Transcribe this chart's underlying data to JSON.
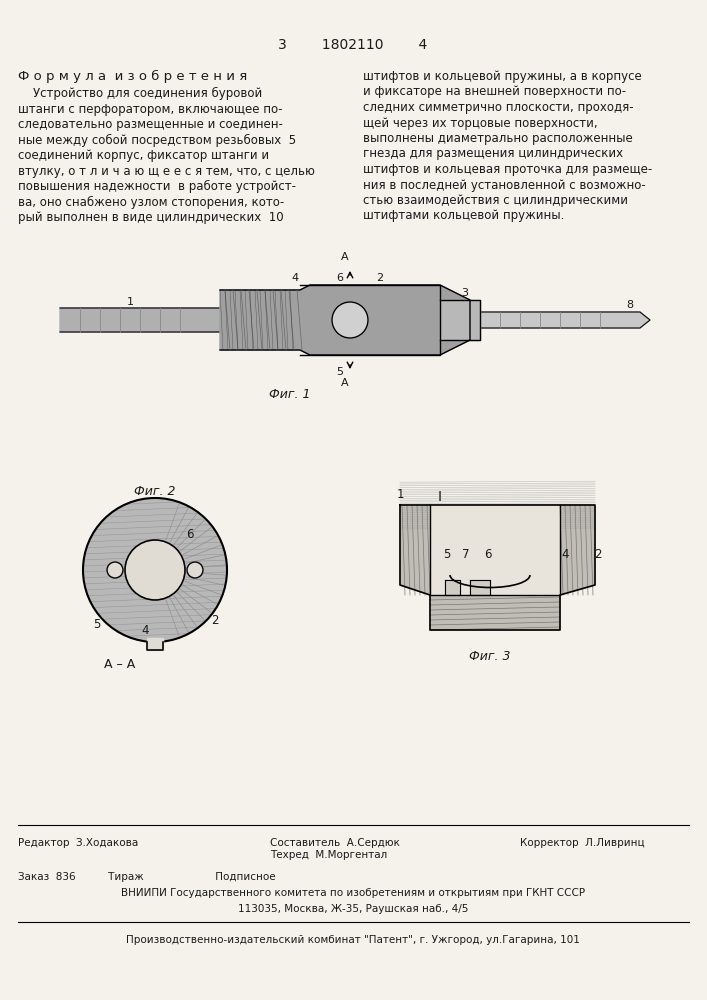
{
  "bg_color": "#e8e4dc",
  "page_color": "#f5f2ec",
  "header_page_numbers": "3        1802110        4",
  "formula_title": "Ф о р м у л а  и з о б р е т е н и я",
  "left_text": [
    "    Устройство для соединения буровой",
    "штанги с перфоратором, включающее по-",
    "следовательно размещенные и соединен-",
    "ные между собой посредством резьбовых  5",
    "соединений корпус, фиксатор штанги и",
    "втулку, о т л и ч а ю щ е е с я тем, что, с целью",
    "повышения надежности  в работе устройст-",
    "ва, оно снабжено узлом стопорения, кото-",
    "рый выполнен в виде цилиндрических  10"
  ],
  "right_text": [
    "штифтов и кольцевой пружины, а в корпусе",
    "и фиксаторе на внешней поверхности по-",
    "следних симметрично плоскости, проходя-",
    "щей через их торцовые поверхности,",
    "выполнены диаметрально расположенные",
    "гнезда для размещения цилиндрических",
    "штифтов и кольцевая проточка для размеще-",
    "ния в последней установленной с возможно-",
    "стью взаимодействия с цилиндрическими",
    "штифтами кольцевой пружины."
  ],
  "fig1_label": "Фиг. 1",
  "fig2_label": "Фиг. 2",
  "fig3_label": "Фиг. 3",
  "aa_label": "А – А",
  "i_label": "I",
  "editor_line": "Редактор  З.Ходакова",
  "composer_line": "Составитель  А.Сердюк\nТехред  М.Моргентал",
  "corrector_line": "Корректор  Л.Ливринц",
  "order_line": "Заказ  836          Тираж                      Подписное",
  "vniiipi_line": "ВНИИПИ Государственного комитета по изобретениям и открытиям при ГКНТ СССР",
  "address_line": "113035, Москва, Ж-35, Раушская наб., 4/5",
  "factory_line": "Производственно-издательский комбинат \"Патент\", г. Ужгород, ул.Гагарина, 101"
}
